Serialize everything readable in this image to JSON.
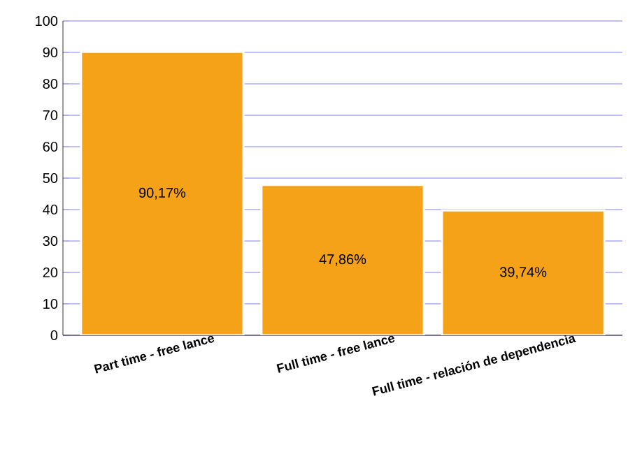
{
  "chart_data": {
    "type": "bar",
    "categories": [
      "Part time - free lance",
      "Full time - free lance",
      "Full time - relación de dependencia"
    ],
    "values": [
      90.17,
      47.86,
      39.74
    ],
    "value_labels": [
      "90,17%",
      "47,86%",
      "39,74%"
    ],
    "color": "#f5a219",
    "ylim": [
      0,
      100
    ],
    "yticks": [
      0,
      10,
      20,
      30,
      40,
      50,
      60,
      70,
      80,
      90,
      100
    ],
    "grid": "y"
  }
}
